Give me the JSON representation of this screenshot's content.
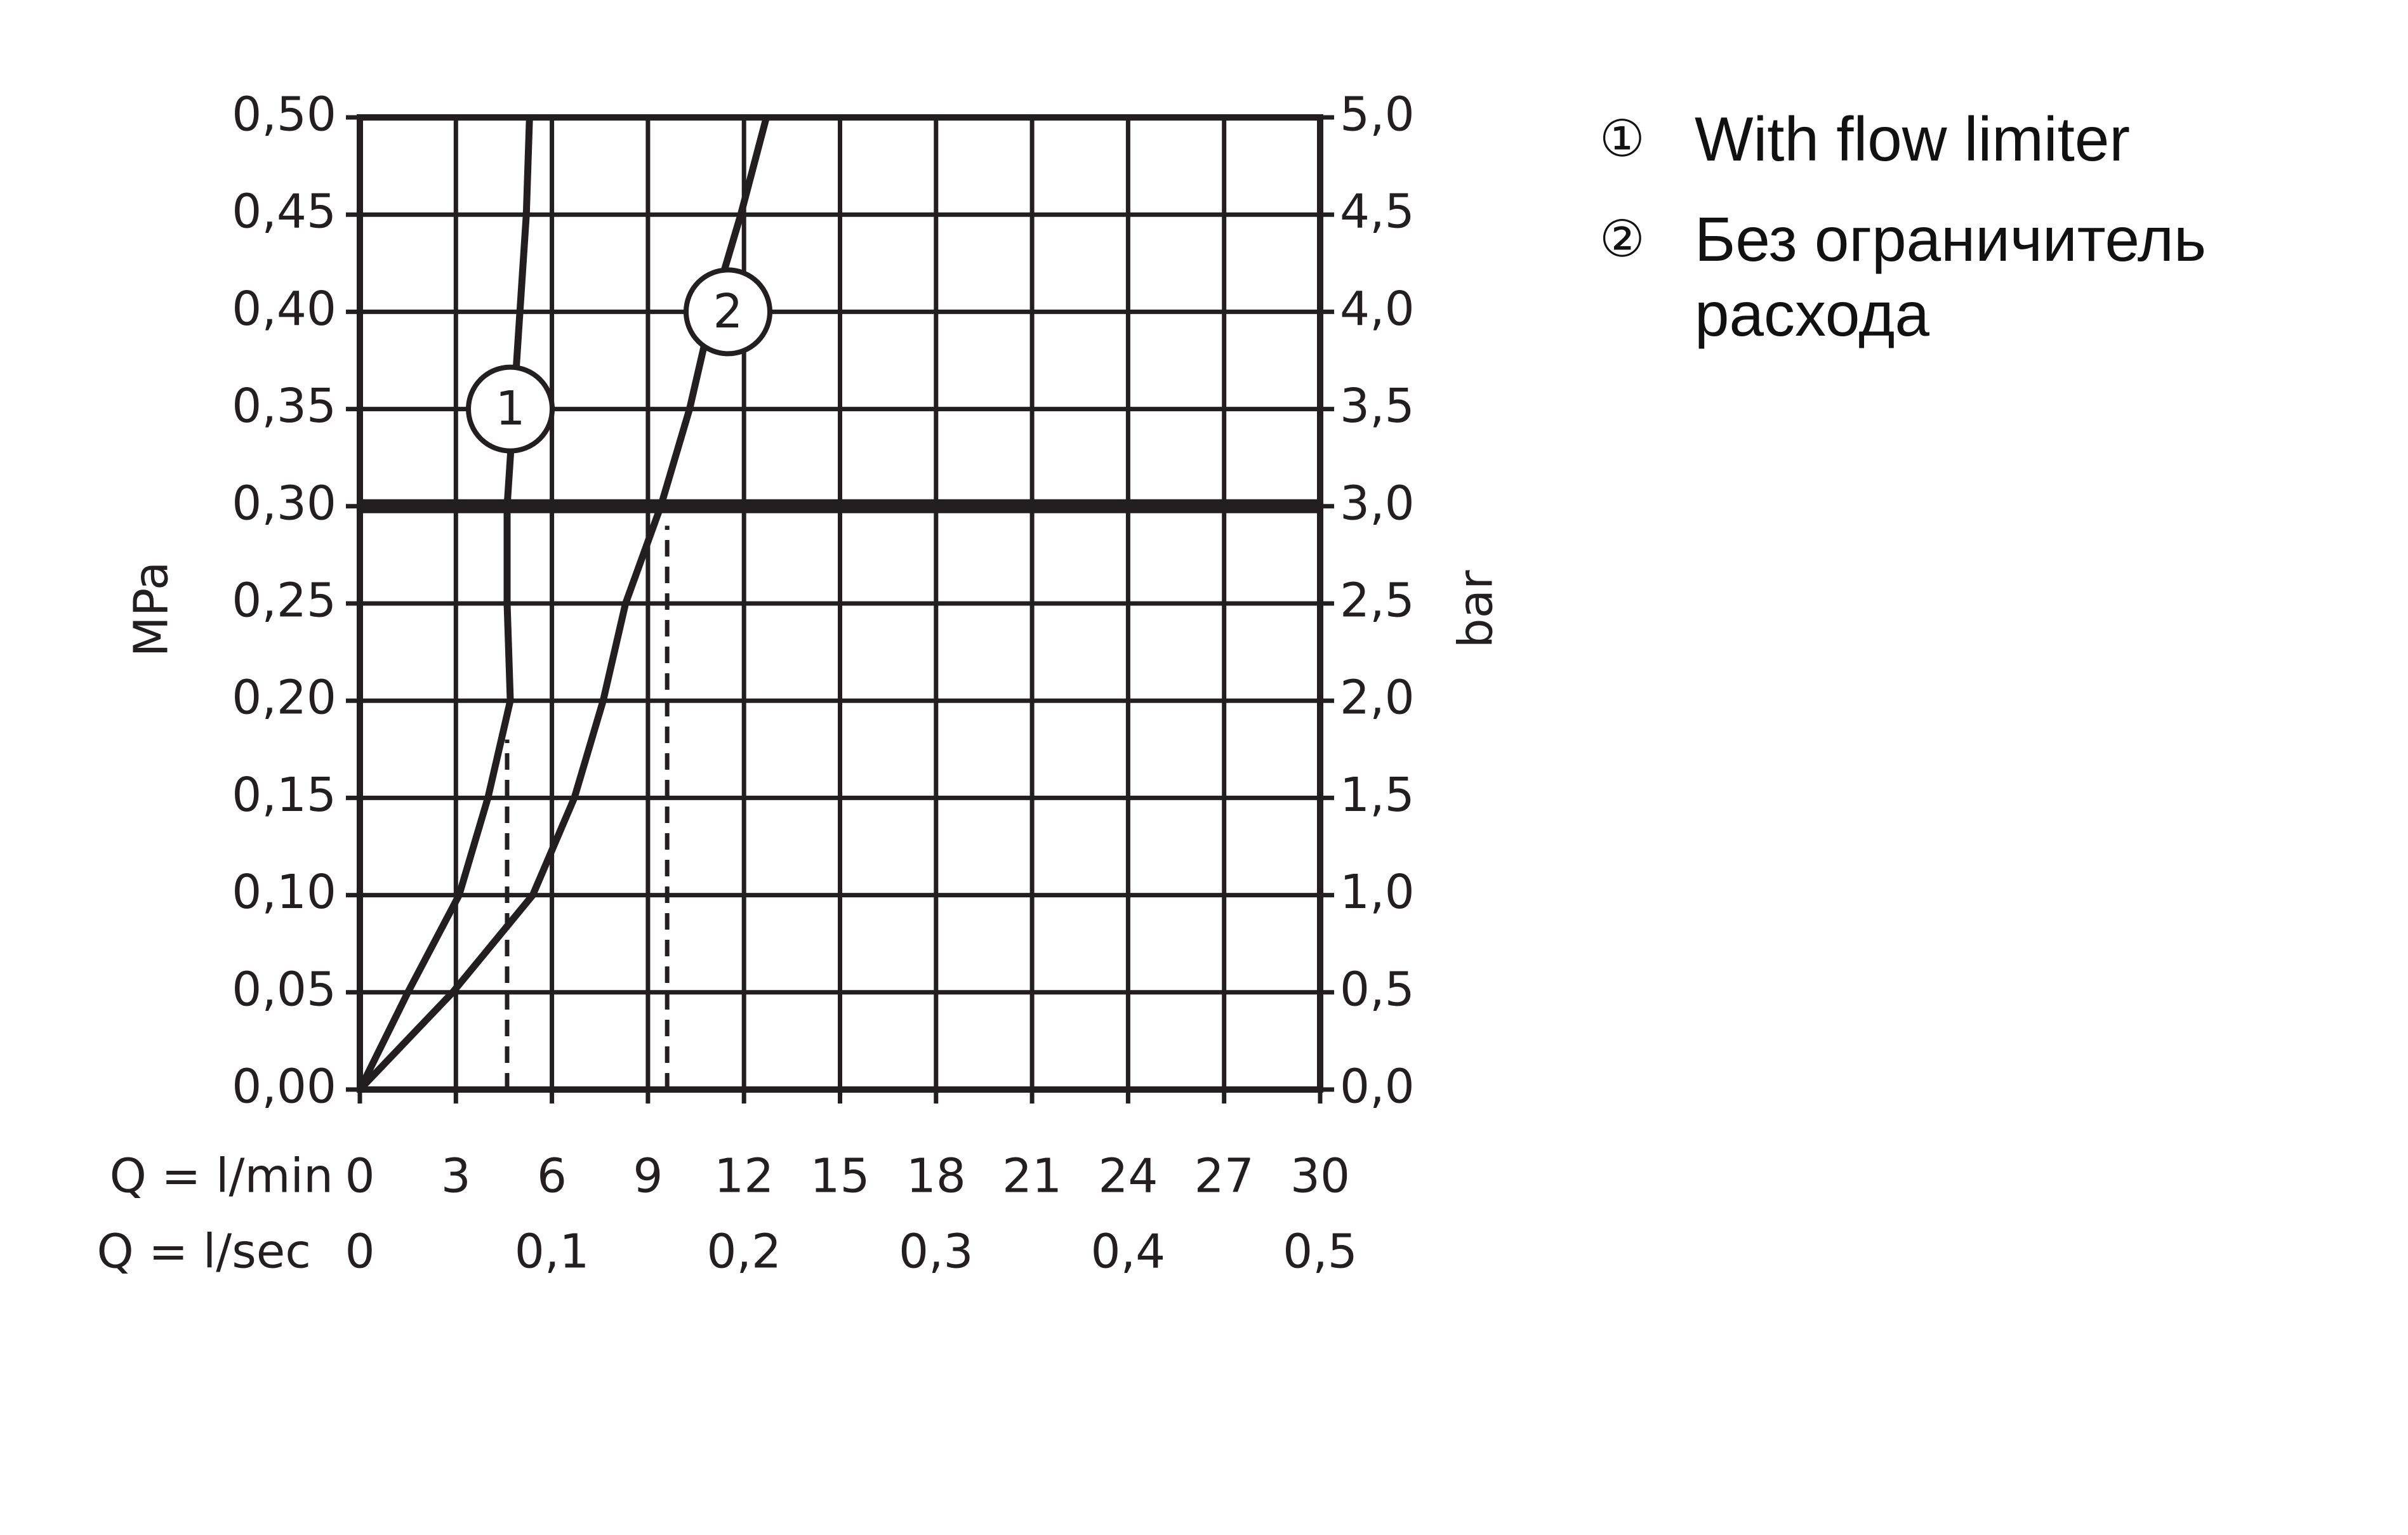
{
  "chart_data": {
    "type": "line",
    "y_label": "MPa",
    "y2_label": "bar",
    "x_label": "Q = l/min",
    "x2_label": "Q = l/sec",
    "xlim": [
      0,
      30
    ],
    "xticks": [
      0,
      3,
      6,
      9,
      12,
      15,
      18,
      21,
      24,
      27,
      30
    ],
    "x2lim": [
      0,
      0.5
    ],
    "x2ticks": [
      0,
      {
        "value": 0.1,
        "label": "0,1"
      },
      {
        "value": 0.2,
        "label": "0,2"
      },
      {
        "value": 0.3,
        "label": "0,3"
      },
      {
        "value": 0.4,
        "label": "0,4"
      },
      {
        "value": 0.5,
        "label": "0,5"
      }
    ],
    "ylim": [
      0,
      0.5
    ],
    "yticks": [
      {
        "value": 0,
        "label": "0,00"
      },
      {
        "value": 0.05,
        "label": "0,05"
      },
      {
        "value": 0.1,
        "label": "0,10"
      },
      {
        "value": 0.15,
        "label": "0,15"
      },
      {
        "value": 0.2,
        "label": "0,20"
      },
      {
        "value": 0.25,
        "label": "0,25"
      },
      {
        "value": 0.3,
        "label": "0,30"
      },
      {
        "value": 0.35,
        "label": "0,35"
      },
      {
        "value": 0.4,
        "label": "0,40"
      },
      {
        "value": 0.45,
        "label": "0,45"
      },
      {
        "value": 0.5,
        "label": "0,50"
      }
    ],
    "y2lim": [
      0,
      5
    ],
    "y2ticks": [
      {
        "value": 0,
        "label": "0,0"
      },
      {
        "value": 0.5,
        "label": "0,5"
      },
      {
        "value": 1,
        "label": "1,0"
      },
      {
        "value": 1.5,
        "label": "1,5"
      },
      {
        "value": 2,
        "label": "2,0"
      },
      {
        "value": 2.5,
        "label": "2,5"
      },
      {
        "value": 3,
        "label": "3,0"
      },
      {
        "value": 3.5,
        "label": "3,5"
      },
      {
        "value": 4,
        "label": "4,0"
      },
      {
        "value": 4.5,
        "label": "4,5"
      },
      {
        "value": 5,
        "label": "5,0"
      }
    ],
    "grid": true,
    "hline": 0.3,
    "reference_lines": [
      {
        "x": 4.6,
        "y": 0.18
      },
      {
        "x": 9.6,
        "y": 0.29
      }
    ],
    "series": [
      {
        "name": "With flow limiter",
        "marker": "①",
        "color": "#231f20",
        "x": [
          0,
          1.5,
          3.1,
          4.0,
          4.7,
          4.6,
          4.6,
          4.8,
          5.0,
          5.2,
          5.3
        ],
        "values": [
          0,
          0.05,
          0.1,
          0.15,
          0.2,
          0.25,
          0.3,
          0.35,
          0.4,
          0.45,
          0.5
        ]
      },
      {
        "name": "Без ограничитель расхода",
        "marker": "②",
        "color": "#231f20",
        "x": [
          0,
          2.9,
          5.4,
          6.7,
          7.6,
          8.3,
          9.4,
          10.3,
          11.0,
          11.9,
          12.7
        ],
        "values": [
          0,
          0.05,
          0.1,
          0.15,
          0.2,
          0.25,
          0.3,
          0.35,
          0.4,
          0.45,
          0.5
        ]
      }
    ],
    "annotations": [
      {
        "text": "1",
        "x": 4.7,
        "y": 0.35
      },
      {
        "text": "2",
        "x": 11.5,
        "y": 0.4
      }
    ]
  }
}
